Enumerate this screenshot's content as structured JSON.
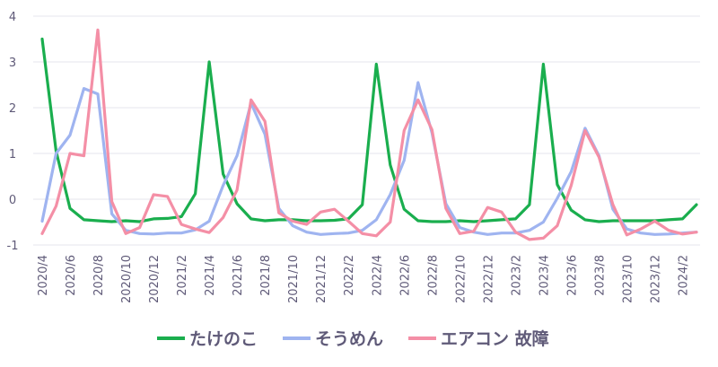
{
  "chart_data": {
    "type": "line",
    "title": "",
    "xlabel": "",
    "ylabel": "",
    "ylim": [
      -1,
      4
    ],
    "yticks": [
      -1,
      0,
      1,
      2,
      3,
      4
    ],
    "grid": true,
    "legend_position": "bottom",
    "x": [
      "2020/4",
      "2020/5",
      "2020/6",
      "2020/7",
      "2020/8",
      "2020/9",
      "2020/10",
      "2020/11",
      "2020/12",
      "2021/1",
      "2021/2",
      "2021/3",
      "2021/4",
      "2021/5",
      "2021/6",
      "2021/7",
      "2021/8",
      "2021/9",
      "2021/10",
      "2021/11",
      "2021/12",
      "2022/1",
      "2022/2",
      "2022/3",
      "2022/4",
      "2022/5",
      "2022/6",
      "2022/7",
      "2022/8",
      "2022/9",
      "2022/10",
      "2022/11",
      "2022/12",
      "2023/1",
      "2023/2",
      "2023/3",
      "2023/4",
      "2023/5",
      "2023/6",
      "2023/7",
      "2023/8",
      "2023/9",
      "2023/10",
      "2023/11",
      "2023/12",
      "2024/1",
      "2024/2",
      "2024/3"
    ],
    "x_tick_labels": [
      "2020/4",
      "2020/6",
      "2020/8",
      "2020/10",
      "2020/12",
      "2021/2",
      "2021/4",
      "2021/6",
      "2021/8",
      "2021/10",
      "2021/12",
      "2022/2",
      "2022/4",
      "2022/6",
      "2022/8",
      "2022/10",
      "2022/12",
      "2023/2",
      "2023/4",
      "2023/6",
      "2023/8",
      "2023/10",
      "2023/12",
      "2024/2"
    ],
    "series": [
      {
        "name": "たけのこ",
        "color": "#1aae4e",
        "values": [
          3.5,
          1.05,
          -0.2,
          -0.45,
          -0.47,
          -0.49,
          -0.47,
          -0.49,
          -0.43,
          -0.42,
          -0.38,
          0.12,
          3.0,
          0.55,
          -0.1,
          -0.43,
          -0.47,
          -0.45,
          -0.45,
          -0.47,
          -0.47,
          -0.46,
          -0.43,
          -0.12,
          2.95,
          0.75,
          -0.22,
          -0.47,
          -0.49,
          -0.49,
          -0.47,
          -0.49,
          -0.47,
          -0.45,
          -0.43,
          -0.12,
          2.95,
          0.32,
          -0.24,
          -0.45,
          -0.49,
          -0.47,
          -0.47,
          -0.47,
          -0.47,
          -0.45,
          -0.43,
          -0.12
        ]
      },
      {
        "name": "そうめん",
        "color": "#9fb4f0",
        "values": [
          -0.48,
          1.0,
          1.4,
          2.42,
          2.3,
          -0.32,
          -0.68,
          -0.75,
          -0.76,
          -0.74,
          -0.74,
          -0.67,
          -0.48,
          0.3,
          0.95,
          2.1,
          1.42,
          -0.2,
          -0.58,
          -0.72,
          -0.77,
          -0.75,
          -0.74,
          -0.68,
          -0.45,
          0.1,
          0.85,
          2.55,
          1.45,
          -0.1,
          -0.62,
          -0.72,
          -0.77,
          -0.74,
          -0.74,
          -0.68,
          -0.5,
          0.02,
          0.6,
          1.55,
          0.95,
          -0.22,
          -0.65,
          -0.74,
          -0.77,
          -0.76,
          -0.74,
          -0.72
        ]
      },
      {
        "name": "エアコン 故障",
        "color": "#f48fa6",
        "values": [
          -0.75,
          -0.15,
          1.0,
          0.95,
          3.7,
          -0.05,
          -0.75,
          -0.62,
          0.1,
          0.06,
          -0.55,
          -0.65,
          -0.73,
          -0.4,
          0.2,
          2.17,
          1.7,
          -0.3,
          -0.48,
          -0.55,
          -0.28,
          -0.22,
          -0.48,
          -0.75,
          -0.8,
          -0.5,
          1.5,
          2.17,
          1.52,
          -0.2,
          -0.75,
          -0.7,
          -0.18,
          -0.28,
          -0.72,
          -0.88,
          -0.85,
          -0.58,
          0.3,
          1.5,
          0.92,
          -0.12,
          -0.78,
          -0.65,
          -0.48,
          -0.68,
          -0.76,
          -0.72
        ]
      }
    ]
  }
}
